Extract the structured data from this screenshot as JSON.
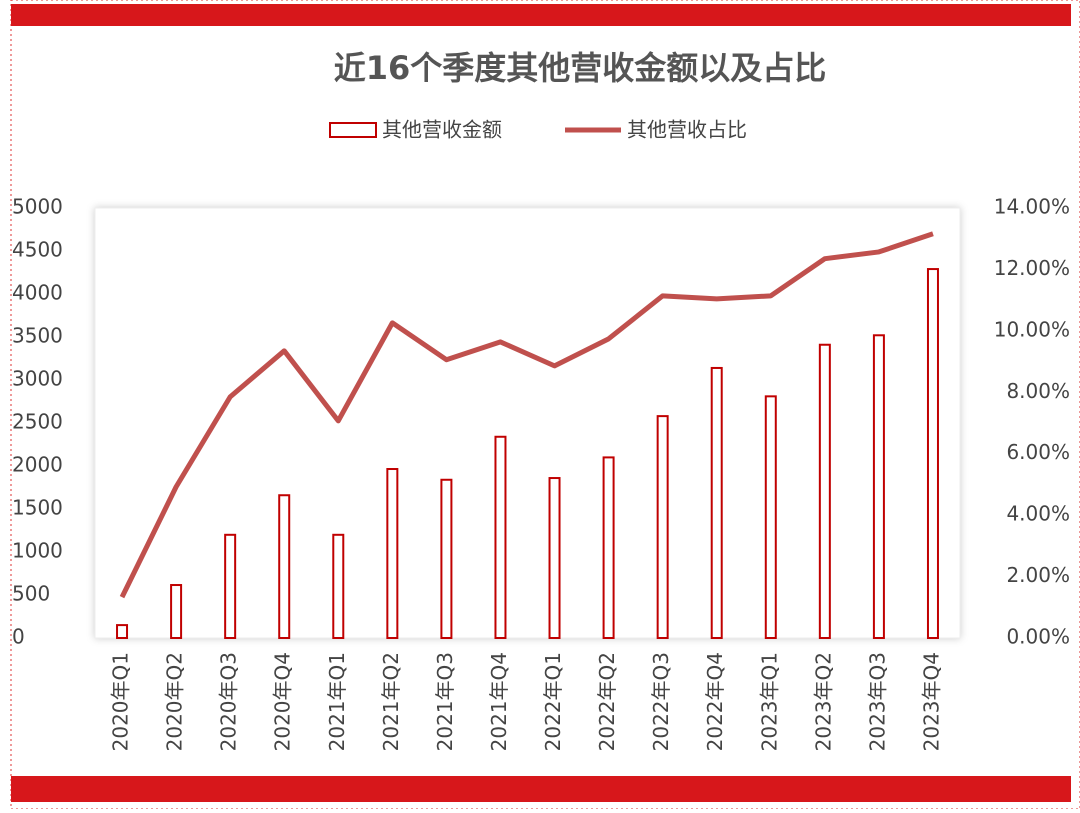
{
  "chart_data": {
    "type": "bar-line",
    "title": "近16个季度其他营收金额以及占比",
    "categories": [
      "2020年Q1",
      "2020年Q2",
      "2020年Q3",
      "2020年Q4",
      "2021年Q1",
      "2021年Q2",
      "2021年Q3",
      "2021年Q4",
      "2022年Q1",
      "2022年Q2",
      "2022年Q3",
      "2022年Q4",
      "2023年Q1",
      "2023年Q2",
      "2023年Q3",
      "2023年Q4"
    ],
    "series": [
      {
        "name": "其他营收金额",
        "type": "bar",
        "color": "#c00000",
        "values": [
          150,
          616,
          1200,
          1660,
          1200,
          1965,
          1840,
          2340,
          1860,
          2100,
          2580,
          3140,
          2810,
          3410,
          3520,
          4290
        ]
      },
      {
        "name": "其他营收占比",
        "type": "line",
        "axis": "y2",
        "color": "#c0504d",
        "values": [
          1.33,
          4.92,
          7.85,
          9.35,
          7.07,
          10.26,
          9.06,
          9.64,
          8.86,
          9.74,
          11.14,
          11.04,
          11.14,
          12.35,
          12.57,
          13.16
        ]
      }
    ],
    "ylim": [
      0,
      5000
    ],
    "yticks": [
      0,
      500,
      1000,
      1500,
      2000,
      2500,
      3000,
      3500,
      4000,
      4500,
      5000
    ],
    "y2lim": [
      0,
      14
    ],
    "y2ticks": [
      {
        "value": 0,
        "label": "0.00%"
      },
      {
        "value": 2,
        "label": "2.00%"
      },
      {
        "value": 4,
        "label": "4.00%"
      },
      {
        "value": 6,
        "label": "6.00%"
      },
      {
        "value": 8,
        "label": "8.00%"
      },
      {
        "value": 10,
        "label": "10.00%"
      },
      {
        "value": 12,
        "label": "12.00%"
      },
      {
        "value": 14,
        "label": "14.00%"
      }
    ],
    "legend": "top"
  }
}
